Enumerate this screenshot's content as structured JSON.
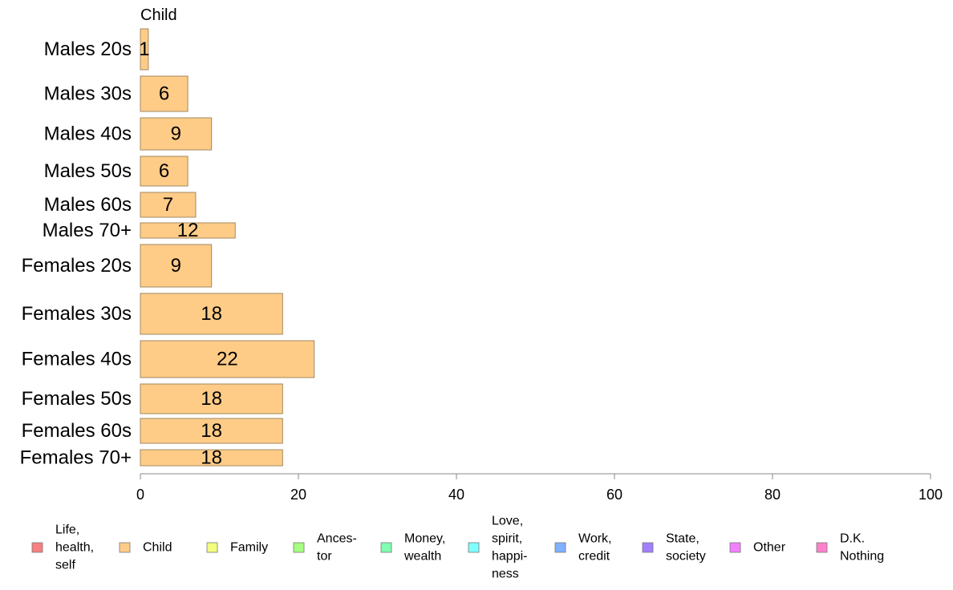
{
  "chart_data": {
    "type": "bar",
    "orientation": "horizontal",
    "title": "Child",
    "xlabel": "",
    "ylabel": "",
    "xlim": [
      0,
      100
    ],
    "x_ticks": [
      0,
      20,
      40,
      60,
      80,
      100
    ],
    "grid": false,
    "categories": [
      "Males 20s",
      "Males 30s",
      "Males 40s",
      "Males 50s",
      "Males 60s",
      "Males 70+",
      "Females 20s",
      "Females 30s",
      "Females 40s",
      "Females 50s",
      "Females 60s",
      "Females 70+"
    ],
    "values": [
      1,
      6,
      9,
      6,
      7,
      12,
      9,
      18,
      22,
      18,
      18,
      18
    ],
    "bar_color": "#FFCC88",
    "bar_stroke": "#A08860",
    "legend_position": "bottom",
    "legend": [
      {
        "label": [
          "Life,",
          "health,",
          "self"
        ],
        "color": "#F88080"
      },
      {
        "label": [
          "Child"
        ],
        "color": "#FFCC88"
      },
      {
        "label": [
          "Family"
        ],
        "color": "#F2FF80"
      },
      {
        "label": [
          "Ances-",
          "tor"
        ],
        "color": "#A6FF80"
      },
      {
        "label": [
          "Money,",
          "wealth"
        ],
        "color": "#80FFB2"
      },
      {
        "label": [
          "Love,",
          "spirit,",
          "happi-",
          "ness"
        ],
        "color": "#80FFFF"
      },
      {
        "label": [
          "Work,",
          "credit"
        ],
        "color": "#80B2FF"
      },
      {
        "label": [
          "State,",
          "society"
        ],
        "color": "#A080FF"
      },
      {
        "label": [
          "Other"
        ],
        "color": "#F280FF"
      },
      {
        "label": [
          "D.K.",
          "Nothing"
        ],
        "color": "#FF80CC"
      }
    ]
  }
}
